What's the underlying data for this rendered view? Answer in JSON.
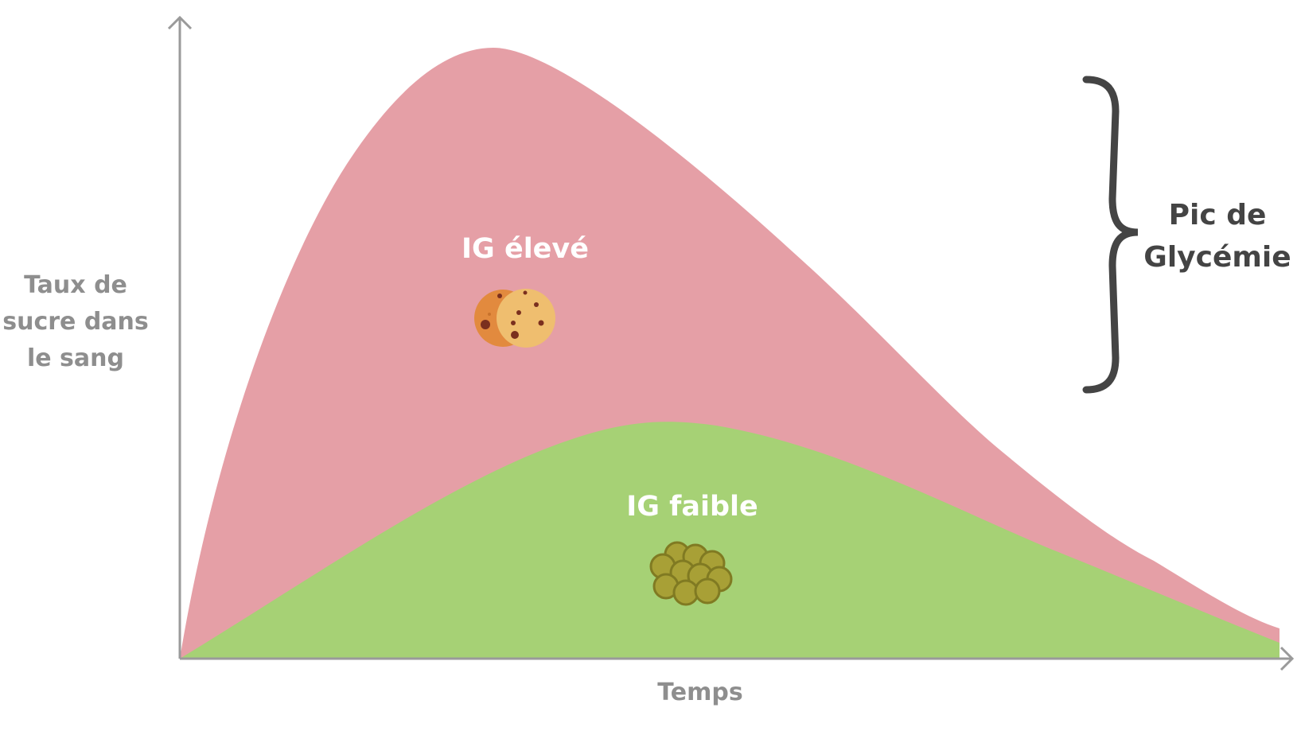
{
  "axes": {
    "y_label_lines": [
      "Taux de",
      "sucre dans",
      "le sang"
    ],
    "x_label": "Temps"
  },
  "curves": {
    "high_gi": {
      "label": "IG élevé",
      "color": "#e59fa6",
      "icon": "cookie-icon"
    },
    "low_gi": {
      "label": "IG faible",
      "color": "#a6d175",
      "icon": "lentils-icon"
    }
  },
  "annotation": {
    "brace_label_lines": [
      "Pic de",
      "Glycémie"
    ],
    "color": "#444444"
  },
  "colors": {
    "axis": "#9a9a9a",
    "cookie_dark": "#e28a3e",
    "cookie_light": "#efbe6f",
    "cookie_chip": "#7a2f1e",
    "lentil": "#a8a036",
    "lentil_edge": "#807a22"
  }
}
